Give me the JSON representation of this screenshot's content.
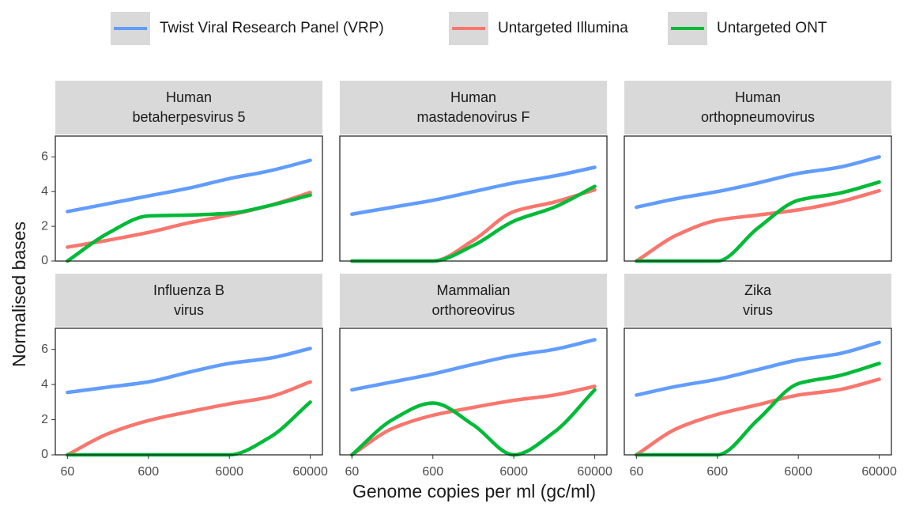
{
  "chart_data": {
    "type": "line",
    "x_label": "Genome copies per ml (gc/ml)",
    "y_label": "Normalised bases",
    "x_scale": "log",
    "x": [
      60,
      190,
      600,
      1900,
      6000,
      19000,
      60000
    ],
    "xlim": [
      42.5,
      84800
    ],
    "xticks": [
      60,
      600,
      6000,
      60000
    ],
    "ylim": [
      0,
      7.2
    ],
    "yticks": [
      0,
      2,
      4,
      6
    ],
    "series": [
      {
        "name": "Twist Viral Research Panel (VRP)",
        "color": "#619CFF"
      },
      {
        "name": "Untargeted Illumina",
        "color": "#F8766D"
      },
      {
        "name": "Untargeted ONT",
        "color": "#00BA38"
      }
    ],
    "facets": [
      {
        "title": [
          "Human",
          "betaherpesvirus 5"
        ],
        "values": [
          [
            2.85,
            3.3,
            3.75,
            4.2,
            4.75,
            5.2,
            5.8
          ],
          [
            0.8,
            1.2,
            1.65,
            2.2,
            2.65,
            3.2,
            3.95
          ],
          [
            0,
            1.6,
            2.6,
            2.65,
            2.75,
            3.2,
            3.8
          ]
        ]
      },
      {
        "title": [
          "Human",
          "mastadenovirus F"
        ],
        "values": [
          [
            2.7,
            3.1,
            3.5,
            4.0,
            4.5,
            4.9,
            5.4
          ],
          [
            0,
            0,
            0,
            1.2,
            2.85,
            3.4,
            4.1
          ],
          [
            0,
            0,
            0,
            0.9,
            2.3,
            3.1,
            4.3
          ]
        ]
      },
      {
        "title": [
          "Human",
          "orthopneumovirus"
        ],
        "values": [
          [
            3.1,
            3.6,
            4.0,
            4.5,
            5.05,
            5.4,
            6.0
          ],
          [
            0,
            1.5,
            2.35,
            2.65,
            2.95,
            3.4,
            4.05
          ],
          [
            0,
            0,
            0,
            1.9,
            3.5,
            3.9,
            4.55
          ]
        ]
      },
      {
        "title": [
          "Influenza B",
          "virus"
        ],
        "values": [
          [
            3.55,
            3.85,
            4.15,
            4.7,
            5.2,
            5.5,
            6.05
          ],
          [
            0,
            1.2,
            1.95,
            2.45,
            2.9,
            3.3,
            4.15
          ],
          [
            0,
            0,
            0,
            0,
            0,
            1.0,
            3.0
          ]
        ]
      },
      {
        "title": [
          "Mammalian",
          "orthoreovirus"
        ],
        "values": [
          [
            3.7,
            4.15,
            4.6,
            5.15,
            5.65,
            6.0,
            6.55
          ],
          [
            0,
            1.5,
            2.25,
            2.7,
            3.1,
            3.4,
            3.9
          ],
          [
            0,
            2.0,
            2.95,
            1.7,
            0,
            1.3,
            3.7
          ]
        ]
      },
      {
        "title": [
          "Zika",
          "virus"
        ],
        "values": [
          [
            3.4,
            3.9,
            4.3,
            4.85,
            5.4,
            5.75,
            6.4
          ],
          [
            0,
            1.5,
            2.3,
            2.85,
            3.4,
            3.7,
            4.3
          ],
          [
            0,
            0,
            0,
            2.0,
            4.05,
            4.5,
            5.2
          ]
        ]
      }
    ]
  }
}
